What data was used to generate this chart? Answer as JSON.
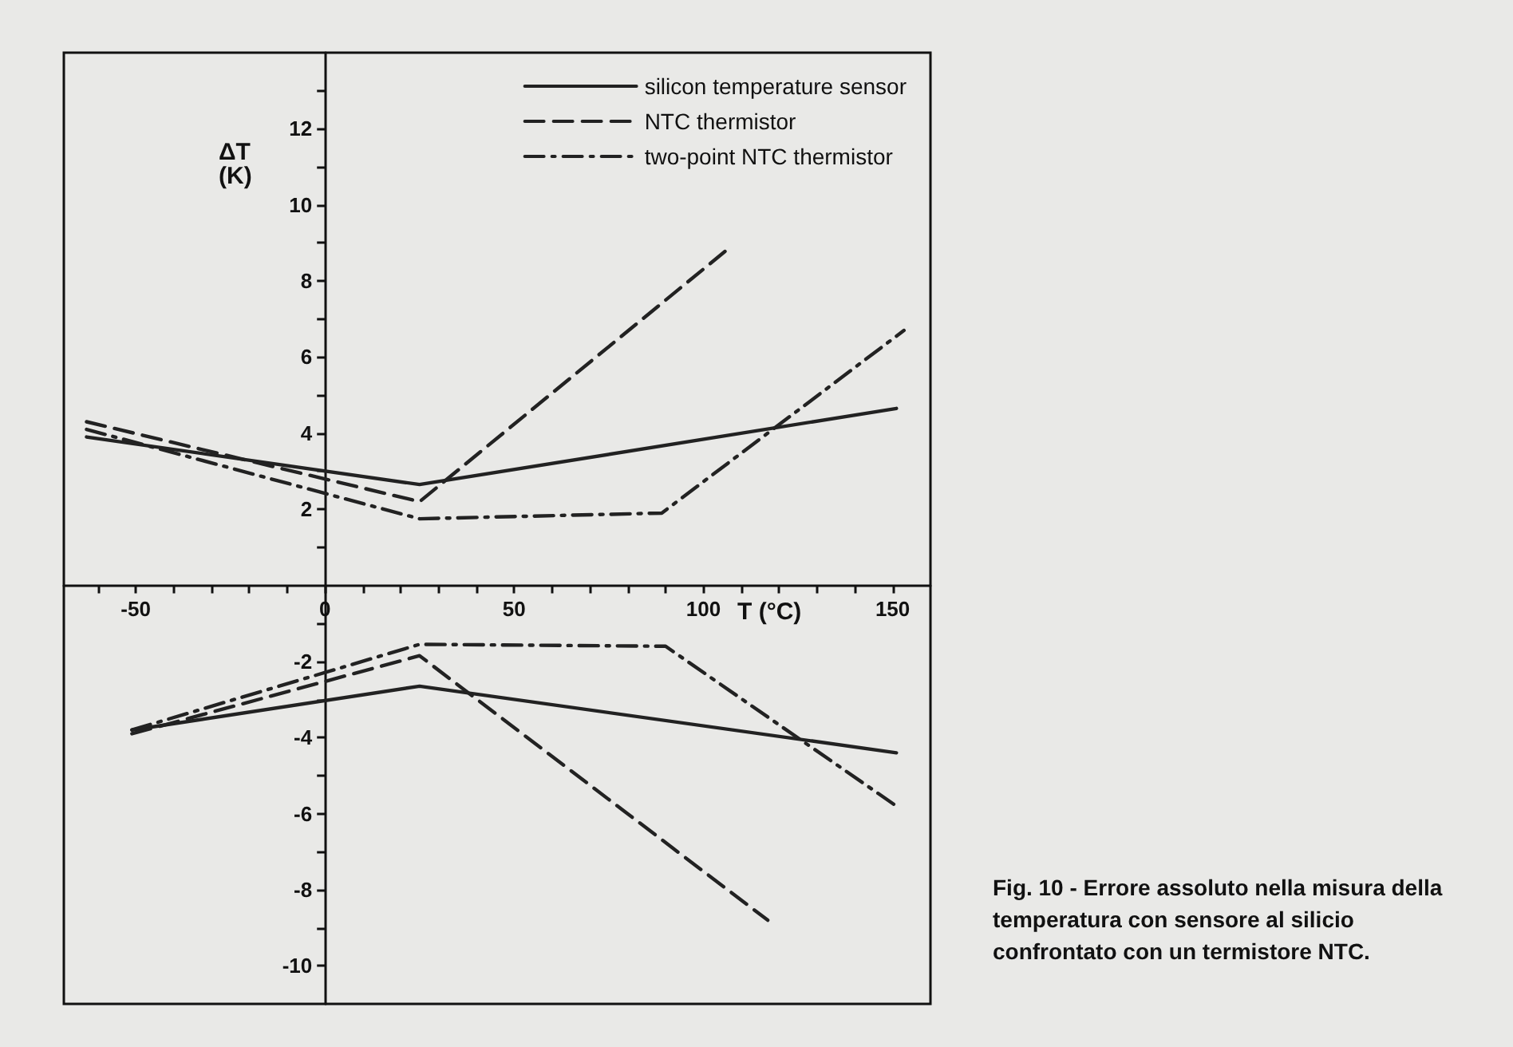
{
  "chart_data": {
    "type": "line",
    "xlabel": "T (°C)",
    "ylabel": "ΔT\n(K)",
    "annotations": [
      "Fig. 10 - Errore assoluto nella misura della temperatura con sensore al silicio confrontato con un termistore NTC."
    ],
    "xlim": [
      -69,
      160
    ],
    "ylim": [
      -11,
      14
    ],
    "xticks": [
      {
        "value": -60,
        "label": null
      },
      -50,
      {
        "value": -40,
        "label": null
      },
      {
        "value": -30,
        "label": null
      },
      {
        "value": -20,
        "label": null
      },
      {
        "value": -10,
        "label": null
      },
      0,
      {
        "value": 10,
        "label": null
      },
      {
        "value": 20,
        "label": null
      },
      {
        "value": 30,
        "label": null
      },
      {
        "value": 40,
        "label": null
      },
      50,
      {
        "value": 60,
        "label": null
      },
      {
        "value": 70,
        "label": null
      },
      {
        "value": 80,
        "label": null
      },
      {
        "value": 90,
        "label": null
      },
      100,
      {
        "value": 110,
        "label": null
      },
      {
        "value": 120,
        "label": null
      },
      {
        "value": 130,
        "label": null
      },
      {
        "value": 140,
        "label": null
      },
      150
    ],
    "yticks": [
      -10,
      {
        "value": -9,
        "label": null
      },
      -8,
      {
        "value": -7,
        "label": null
      },
      -6,
      {
        "value": -5,
        "label": null
      },
      -4,
      {
        "value": -3,
        "label": null
      },
      -2,
      {
        "value": -1,
        "label": null
      },
      {
        "value": 1,
        "label": null
      },
      2,
      {
        "value": 3,
        "label": null
      },
      4,
      {
        "value": 5,
        "label": null
      },
      6,
      {
        "value": 7,
        "label": null
      },
      8,
      {
        "value": 9,
        "label": null
      },
      10,
      {
        "value": 11,
        "label": null
      },
      12,
      {
        "value": 13,
        "label": null
      }
    ],
    "grid": false,
    "legend": "top right",
    "marker": "none",
    "series": [
      {
        "name": "silicon temperature sensor",
        "color": "#222222",
        "line_style": "solid",
        "x": [
          -63,
          25,
          151
        ],
        "values": [
          3.9,
          2.65,
          4.65
        ]
      },
      {
        "name": "NTC thermistor",
        "color": "#222222",
        "line_style": "dashed",
        "x": [
          -63,
          25,
          106
        ],
        "values": [
          4.3,
          2.2,
          8.8
        ]
      },
      {
        "name": "two-point NTC thermistor",
        "color": "#222222",
        "line_style": "dashdot",
        "x": [
          -63,
          25,
          89,
          153
        ],
        "values": [
          4.1,
          1.75,
          1.9,
          6.7
        ]
      },
      {
        "color": "#222222",
        "line_style": "solid",
        "x": [
          -51,
          25,
          151
        ],
        "values": [
          -3.8,
          -2.65,
          -4.4
        ]
      },
      {
        "color": "#222222",
        "line_style": "dashed",
        "x": [
          -51,
          25,
          117
        ],
        "values": [
          -3.9,
          -1.85,
          -8.8
        ]
      },
      {
        "color": "#222222",
        "line_style": "dashdot",
        "x": [
          -51,
          25,
          90,
          151
        ],
        "values": [
          -3.8,
          -1.55,
          -1.6,
          -5.8
        ]
      }
    ]
  }
}
